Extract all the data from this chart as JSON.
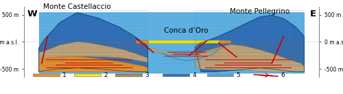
{
  "title_left": "Monte Castellaccio",
  "title_right": "Monte Pellegrino",
  "title_center": "Conca d’Oro",
  "west_label": "W",
  "east_label": "E",
  "y_ticks": [
    500,
    0,
    -500
  ],
  "y_tick_labels": [
    "500 m",
    "0 m a.s.l.",
    "-500 m"
  ],
  "y_lim": [
    -650,
    650
  ],
  "x_lim": [
    0,
    100
  ],
  "background_color": "#ffffff",
  "legend_items": [
    {
      "label": "1",
      "color": "#E8932A",
      "hatch": ""
    },
    {
      "label": "2",
      "color": "#FFEB00",
      "hatch": ""
    },
    {
      "label": "3",
      "color": "#C4A87A",
      "hatch": "---"
    },
    {
      "label": "4",
      "color": "#2E6DB4",
      "hatch": ""
    },
    {
      "label": "5",
      "color": "#5DB0E0",
      "hatch": ""
    },
    {
      "label": "6",
      "color": "red",
      "hatch": ""
    }
  ],
  "colors": {
    "blue_dark": "#2E6DB4",
    "blue_light": "#5DB0E0",
    "orange": "#E8932A",
    "yellow": "#FFEB00",
    "tan": "#C4A87A",
    "red": "#CC0000",
    "white": "#FFFFFF",
    "gray_bg": "#D8E8F0"
  },
  "font_size_title": 7.5,
  "font_size_label": 6.5,
  "font_size_axis": 5.5,
  "font_size_legend": 6.5
}
